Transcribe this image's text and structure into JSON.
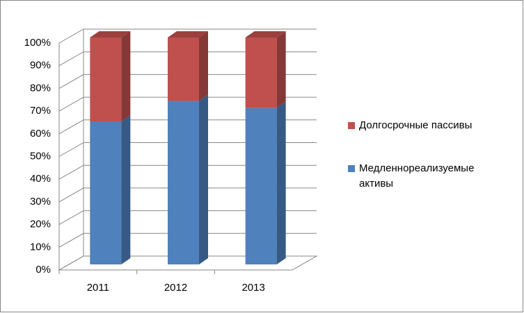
{
  "chart_data": {
    "type": "bar",
    "stacked": true,
    "categories": [
      "2011",
      "2012",
      "2013"
    ],
    "series": [
      {
        "name": "Медленнореализуемые активы",
        "color": "#4f81bd",
        "values": [
          63,
          72,
          69
        ]
      },
      {
        "name": "Долгосрочные пассивы",
        "color": "#c0504d",
        "values": [
          37,
          28,
          31
        ]
      }
    ],
    "ylim": [
      0,
      100
    ],
    "yticks": [
      {
        "value": 0,
        "label": "0%"
      },
      {
        "value": 10,
        "label": "10%"
      },
      {
        "value": 20,
        "label": "20%"
      },
      {
        "value": 30,
        "label": "30%"
      },
      {
        "value": 40,
        "label": "40%"
      },
      {
        "value": 50,
        "label": "50%"
      },
      {
        "value": 60,
        "label": "60%"
      },
      {
        "value": 70,
        "label": "70%"
      },
      {
        "value": 80,
        "label": "80%"
      },
      {
        "value": 90,
        "label": "90%"
      },
      {
        "value": 100,
        "label": "100%"
      }
    ],
    "grid": true,
    "legend": "right"
  }
}
